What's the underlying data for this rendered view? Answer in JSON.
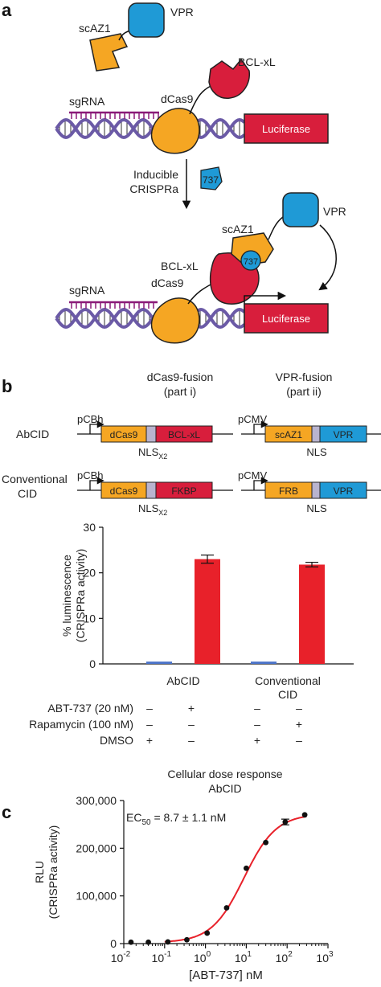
{
  "figure": {
    "panel_a": {
      "letter": "a",
      "vpr": "VPR",
      "scaz1": "scAZ1",
      "bclxl": "BCL-xL",
      "sgrna": "sgRNA",
      "dcas9": "dCas9",
      "luciferase": "Luciferase",
      "inducible_line1": "Inducible",
      "inducible_line2": "CRISPRa",
      "drug": "737",
      "colors": {
        "dna": "#6b5aa6",
        "sgrna": "#8a1a78",
        "dcas9": "#f5a623",
        "bclxl": "#d81e3c",
        "vpr": "#1f9ad6",
        "luciferase": "#d81e3c"
      }
    },
    "panel_b": {
      "letter": "b",
      "dcas9_fusion_line1": "dCas9-fusion",
      "dcas9_fusion_line2": "(part i)",
      "vpr_fusion_line1": "VPR-fusion",
      "vpr_fusion_line2": "(part ii)",
      "promoter_pcbh": "pCBh",
      "promoter_pcmv": "pCMV",
      "abcid_label": "AbCID",
      "conventional_line1": "Conventional",
      "conventional_line2": "CID",
      "constructs": {
        "abcid_dcas9": "dCas9",
        "abcid_bclxl": "BCL-xL",
        "abcid_scaz1": "scAZ1",
        "abcid_vpr": "VPR",
        "conv_dcas9": "dCas9",
        "conv_fkbp": "FKBP",
        "conv_frb": "FRB",
        "conv_vpr": "VPR"
      },
      "nls_x2": "NLS",
      "nls_x2_sub": "X2",
      "nls": "NLS",
      "treatments": [
        {
          "label": "ABT-737 (20 nM)",
          "signs": [
            "–",
            "+",
            "–",
            "–"
          ]
        },
        {
          "label": "Rapamycin (100 nM)",
          "signs": [
            "–",
            "–",
            "–",
            "+"
          ]
        },
        {
          "label": "DMSO",
          "signs": [
            "+",
            "–",
            "+",
            "–"
          ]
        }
      ]
    },
    "panel_c": {
      "letter": "c",
      "title_line1": "Cellular dose response",
      "title_line2": "AbCID",
      "ec50_prefix": "EC",
      "ec50_sub": "50",
      "ec50_value": " = 8.7 ± 1.1 nM"
    }
  },
  "chart_data": [
    {
      "type": "bar",
      "ylabel": "% luminescence\n(CRISPRa activity)",
      "ylim": [
        0,
        30
      ],
      "yticks": [
        0,
        10,
        20,
        30
      ],
      "group_labels": [
        "AbCID",
        "Conventional\nCID"
      ],
      "bars": [
        {
          "group": 0,
          "value": 0.5,
          "error": 0,
          "color": "#4a72c8"
        },
        {
          "group": 0,
          "value": 23.0,
          "error": 0.9,
          "color": "#e8212a"
        },
        {
          "group": 1,
          "value": 0.5,
          "error": 0,
          "color": "#4a72c8"
        },
        {
          "group": 1,
          "value": 21.8,
          "error": 0.5,
          "color": "#e8212a"
        }
      ]
    },
    {
      "type": "scatter",
      "xlabel": "[ABT-737] nM",
      "ylabel": "RLU\n(CRISPRa activity)",
      "xscale": "log",
      "xlim": [
        0.01,
        1000
      ],
      "ylim": [
        0,
        300000
      ],
      "yticks": [
        0,
        100000,
        200000,
        300000
      ],
      "ytick_labels": [
        "0",
        "100,000",
        "200,000",
        "300,000"
      ],
      "xtick_exponents": [
        "-2",
        "-1",
        "0",
        "1",
        "2",
        "3"
      ],
      "points": [
        {
          "x": 0.015,
          "y": 3000
        },
        {
          "x": 0.04,
          "y": 3000
        },
        {
          "x": 0.12,
          "y": 3500
        },
        {
          "x": 0.35,
          "y": 8000
        },
        {
          "x": 1.1,
          "y": 22000
        },
        {
          "x": 3.3,
          "y": 75000
        },
        {
          "x": 10,
          "y": 158000
        },
        {
          "x": 30,
          "y": 212000
        },
        {
          "x": 90,
          "y": 255000,
          "error": 6000
        },
        {
          "x": 270,
          "y": 270000
        }
      ],
      "fit": {
        "bottom": 2000,
        "top": 272000,
        "ec50": 8.7,
        "hill": 1.1,
        "color": "#e8212a"
      }
    }
  ]
}
